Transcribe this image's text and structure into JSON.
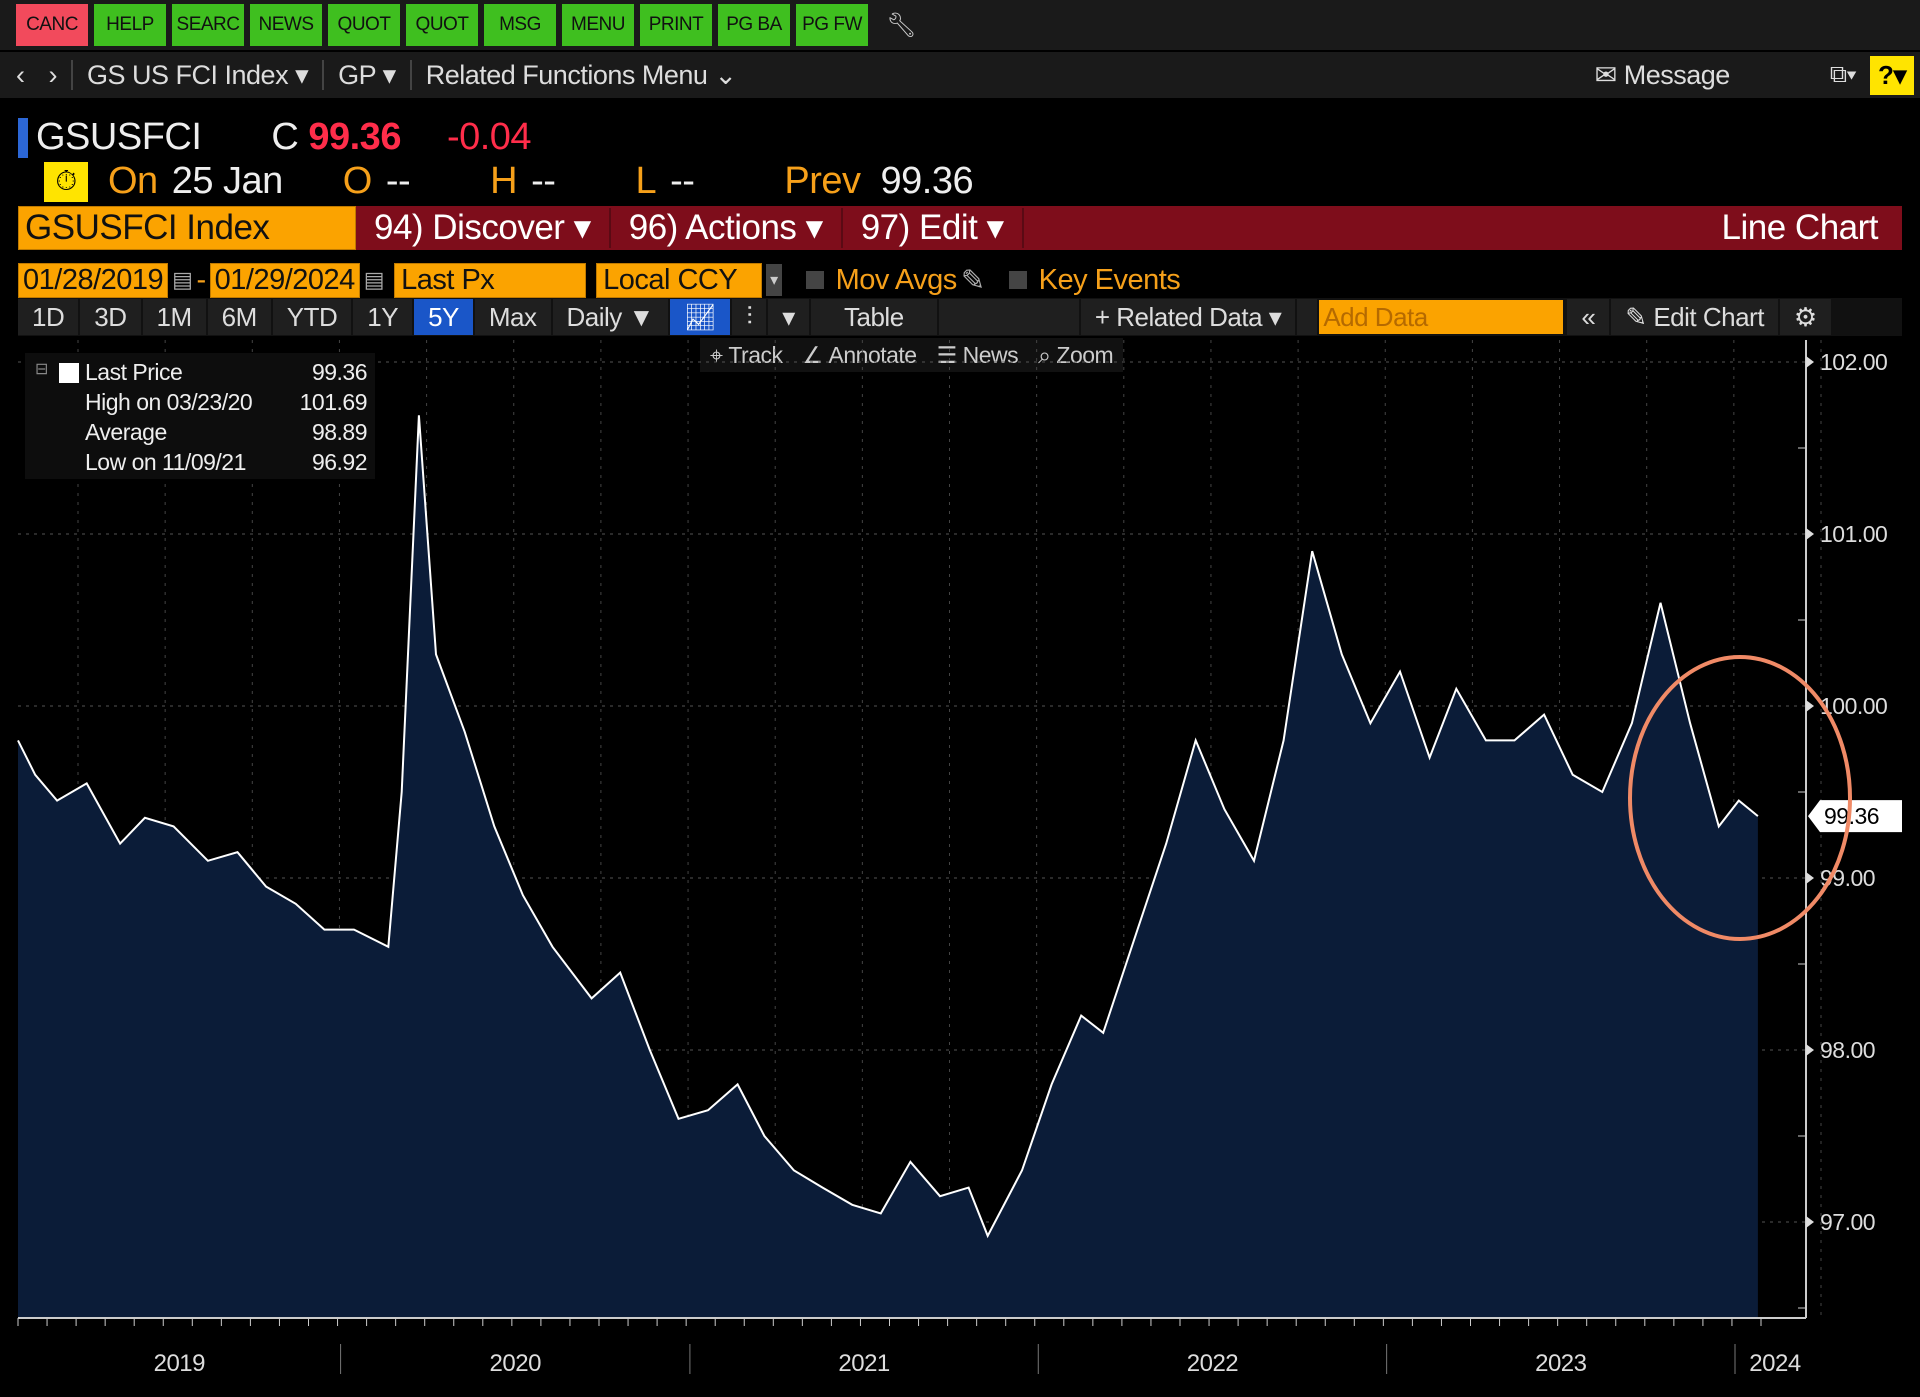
{
  "function_keys": [
    {
      "label": "CANC",
      "color": "red"
    },
    {
      "label": "HELP"
    },
    {
      "label": "SEARC"
    },
    {
      "label": "NEWS"
    },
    {
      "label": "QUOT"
    },
    {
      "label": "QUOT"
    },
    {
      "label": "MSG"
    },
    {
      "label": "MENU"
    },
    {
      "label": "PRINT"
    },
    {
      "label": "PG BA"
    },
    {
      "label": "PG FW"
    }
  ],
  "nav": {
    "security": "GS US FCI Index",
    "function": "GP",
    "related": "Related Functions Menu",
    "message": "Message",
    "help": "?"
  },
  "quote": {
    "ticker": "GSUSFCI",
    "c_label": "C",
    "last": "99.36",
    "change": "-0.04",
    "on_label": "On",
    "date": "25 Jan",
    "o_label": "O",
    "o": "--",
    "h_label": "H",
    "h": "--",
    "l_label": "L",
    "l": "--",
    "prev_label": "Prev",
    "prev": "99.36"
  },
  "redbar": {
    "security": "GSUSFCI Index",
    "discover": "94) Discover",
    "actions": "96) Actions",
    "edit": "97) Edit",
    "chart_type": "Line Chart"
  },
  "controls": {
    "start_date": "01/28/2019",
    "end_date": "01/29/2024",
    "field": "Last Px",
    "currency": "Local CCY",
    "mov_avgs": "Mov Avgs",
    "key_events": "Key Events",
    "periods": [
      "1D",
      "3D",
      "1M",
      "6M",
      "YTD",
      "1Y",
      "5Y",
      "Max"
    ],
    "selected_period": "5Y",
    "frequency": "Daily",
    "table": "Table",
    "related_data": "Related Data",
    "add_data_placeholder": "Add Data",
    "edit_chart": "Edit Chart",
    "tools": [
      "Track",
      "Annotate",
      "News",
      "Zoom"
    ]
  },
  "legend": [
    {
      "label": "Last Price",
      "value": "99.36"
    },
    {
      "label": "High on 03/23/20",
      "value": "101.69"
    },
    {
      "label": "Average",
      "value": "98.89"
    },
    {
      "label": "Low on 11/09/21",
      "value": "96.92"
    }
  ],
  "colors": {
    "fill": "#0b1c38",
    "line": "#ffffff",
    "annotation_circle": "#f08a66",
    "accent_orange": "#fba300",
    "red_bar": "#7e0d1b"
  },
  "chart_data": {
    "type": "area",
    "ylim": [
      96.45,
      102.1
    ],
    "yticks": [
      "102.00",
      "101.00",
      "100.00",
      "99.00",
      "98.00",
      "97.00"
    ],
    "xlabels": [
      "2019",
      "2020",
      "2021",
      "2022",
      "2023",
      "2024"
    ],
    "last_value_label": "99.36",
    "points": [
      [
        "2019-01-28",
        99.8
      ],
      [
        "2019-02-15",
        99.6
      ],
      [
        "2019-03-10",
        99.45
      ],
      [
        "2019-04-10",
        99.55
      ],
      [
        "2019-05-15",
        99.2
      ],
      [
        "2019-06-10",
        99.35
      ],
      [
        "2019-07-10",
        99.3
      ],
      [
        "2019-08-15",
        99.1
      ],
      [
        "2019-09-15",
        99.15
      ],
      [
        "2019-10-15",
        98.95
      ],
      [
        "2019-11-15",
        98.85
      ],
      [
        "2019-12-15",
        98.7
      ],
      [
        "2020-01-15",
        98.7
      ],
      [
        "2020-02-20",
        98.6
      ],
      [
        "2020-03-05",
        99.5
      ],
      [
        "2020-03-23",
        101.69
      ],
      [
        "2020-04-10",
        100.3
      ],
      [
        "2020-05-10",
        99.85
      ],
      [
        "2020-06-10",
        99.3
      ],
      [
        "2020-07-10",
        98.9
      ],
      [
        "2020-08-10",
        98.6
      ],
      [
        "2020-09-20",
        98.3
      ],
      [
        "2020-10-20",
        98.45
      ],
      [
        "2020-11-20",
        98.0
      ],
      [
        "2020-12-20",
        97.6
      ],
      [
        "2021-01-20",
        97.65
      ],
      [
        "2021-02-20",
        97.8
      ],
      [
        "2021-03-20",
        97.5
      ],
      [
        "2021-04-20",
        97.3
      ],
      [
        "2021-05-20",
        97.2
      ],
      [
        "2021-06-20",
        97.1
      ],
      [
        "2021-07-20",
        97.05
      ],
      [
        "2021-08-20",
        97.35
      ],
      [
        "2021-09-20",
        97.15
      ],
      [
        "2021-10-20",
        97.2
      ],
      [
        "2021-11-09",
        96.92
      ],
      [
        "2021-12-15",
        97.3
      ],
      [
        "2022-01-15",
        97.8
      ],
      [
        "2022-02-15",
        98.2
      ],
      [
        "2022-03-10",
        98.1
      ],
      [
        "2022-04-15",
        98.7
      ],
      [
        "2022-05-15",
        99.2
      ],
      [
        "2022-06-15",
        99.8
      ],
      [
        "2022-07-15",
        99.4
      ],
      [
        "2022-08-15",
        99.1
      ],
      [
        "2022-09-15",
        99.8
      ],
      [
        "2022-10-15",
        100.9
      ],
      [
        "2022-11-15",
        100.3
      ],
      [
        "2022-12-15",
        99.9
      ],
      [
        "2023-01-15",
        100.2
      ],
      [
        "2023-02-15",
        99.7
      ],
      [
        "2023-03-15",
        100.1
      ],
      [
        "2023-04-15",
        99.8
      ],
      [
        "2023-05-15",
        99.8
      ],
      [
        "2023-06-15",
        99.95
      ],
      [
        "2023-07-15",
        99.6
      ],
      [
        "2023-08-15",
        99.5
      ],
      [
        "2023-09-15",
        99.9
      ],
      [
        "2023-10-15",
        100.6
      ],
      [
        "2023-11-15",
        99.9
      ],
      [
        "2023-12-15",
        99.3
      ],
      [
        "2024-01-05",
        99.45
      ],
      [
        "2024-01-25",
        99.36
      ]
    ]
  }
}
